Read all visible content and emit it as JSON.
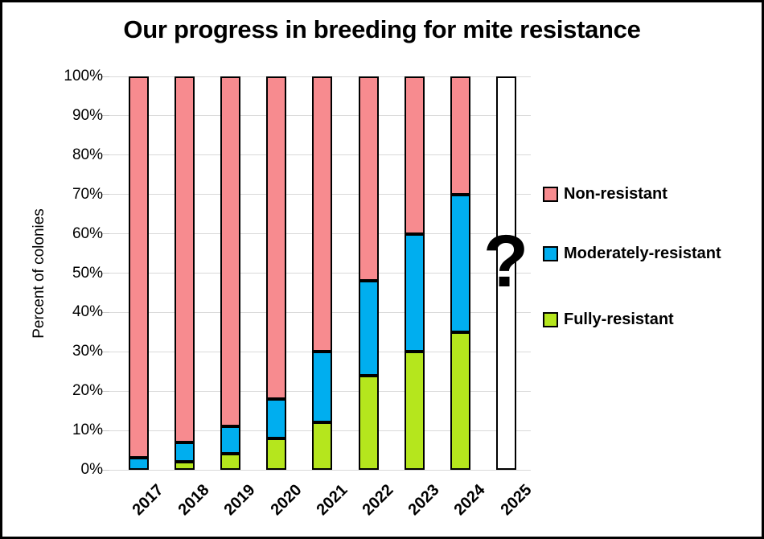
{
  "title": "Our progress in breeding for mite resistance",
  "chart_data": {
    "type": "bar",
    "stacked": true,
    "title": "Our progress in breeding for mite resistance",
    "ylabel": "Percent of colonies",
    "xlabel": "",
    "ylim": [
      0,
      100
    ],
    "ytick_step": 10,
    "ytick_labels": [
      "0%",
      "10%",
      "20%",
      "30%",
      "40%",
      "50%",
      "60%",
      "70%",
      "80%",
      "90%",
      "100%"
    ],
    "grid": true,
    "legend_position": "right",
    "categories": [
      "2017",
      "2018",
      "2019",
      "2020",
      "2021",
      "2022",
      "2023",
      "2024",
      "2025"
    ],
    "series": [
      {
        "name": "Fully-resistant",
        "color": "#B5E61D",
        "values": [
          0,
          2,
          4,
          8,
          12,
          24,
          30,
          35,
          null
        ]
      },
      {
        "name": "Moderately-resistant",
        "color": "#00AEEF",
        "values": [
          3,
          5,
          7,
          10,
          18,
          24,
          30,
          35,
          null
        ]
      },
      {
        "name": "Non-resistant",
        "color": "#F78B8F",
        "values": [
          97,
          93,
          89,
          82,
          70,
          52,
          40,
          30,
          null
        ]
      }
    ],
    "empty_categories": [
      "2025"
    ],
    "annotations": [
      {
        "text": "?",
        "x": "2025",
        "y": 52
      }
    ]
  },
  "legend": {
    "items": [
      {
        "label": "Non-resistant",
        "color": "#F78B8F"
      },
      {
        "label": "Moderately-resistant",
        "color": "#00AEEF"
      },
      {
        "label": "Fully-resistant",
        "color": "#B5E61D"
      }
    ]
  }
}
